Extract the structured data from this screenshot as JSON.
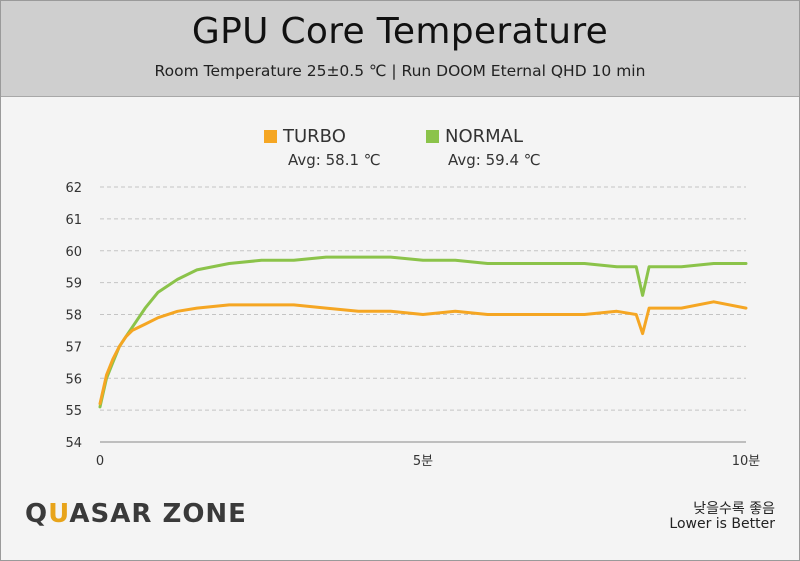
{
  "header": {
    "title": "GPU Core Temperature",
    "subtitle": "Room Temperature 25±0.5 ℃  |  Run DOOM Eternal QHD 10 min"
  },
  "legend": [
    {
      "label": "TURBO",
      "avg": "Avg: 58.1 ℃",
      "color": "#f5a623"
    },
    {
      "label": "NORMAL",
      "avg": "Avg: 59.4 ℃",
      "color": "#8bc34a"
    }
  ],
  "footer": {
    "logo_q": "Q",
    "logo_u": "U",
    "logo_rest": "ASAR ZONE",
    "note_ko": "낮을수록 좋음",
    "note_en": "Lower is Better"
  },
  "chart_data": {
    "type": "line",
    "title": "GPU Core Temperature",
    "subtitle": "Room Temperature 25±0.5 ℃  |  Run DOOM Eternal QHD 10 min",
    "xlim": [
      0,
      10
    ],
    "ylim": [
      54,
      62
    ],
    "yticks": [
      54,
      55,
      56,
      57,
      58,
      59,
      60,
      61,
      62
    ],
    "xticks": [
      {
        "value": 0,
        "label": "0"
      },
      {
        "value": 5,
        "label": "5분"
      },
      {
        "value": 10,
        "label": "10분"
      }
    ],
    "grid": true,
    "legend_position": "top-center",
    "x": [
      0,
      0.1,
      0.2,
      0.3,
      0.4,
      0.5,
      0.7,
      0.9,
      1.2,
      1.5,
      2.0,
      2.5,
      3.0,
      3.5,
      4.0,
      4.5,
      5.0,
      5.5,
      6.0,
      6.5,
      7.0,
      7.5,
      8.0,
      8.3,
      8.4,
      8.5,
      9.0,
      9.5,
      10.0
    ],
    "series": [
      {
        "name": "TURBO",
        "color": "#f5a623",
        "values": [
          55.2,
          56.1,
          56.6,
          57.0,
          57.3,
          57.5,
          57.7,
          57.9,
          58.1,
          58.2,
          58.3,
          58.3,
          58.3,
          58.2,
          58.1,
          58.1,
          58.0,
          58.1,
          58.0,
          58.0,
          58.0,
          58.0,
          58.1,
          58.0,
          57.4,
          58.2,
          58.2,
          58.4,
          58.2
        ]
      },
      {
        "name": "NORMAL",
        "color": "#8bc34a",
        "values": [
          55.1,
          56.0,
          56.5,
          57.0,
          57.3,
          57.6,
          58.2,
          58.7,
          59.1,
          59.4,
          59.6,
          59.7,
          59.7,
          59.8,
          59.8,
          59.8,
          59.7,
          59.7,
          59.6,
          59.6,
          59.6,
          59.6,
          59.5,
          59.5,
          58.6,
          59.5,
          59.5,
          59.6,
          59.6
        ]
      }
    ]
  }
}
